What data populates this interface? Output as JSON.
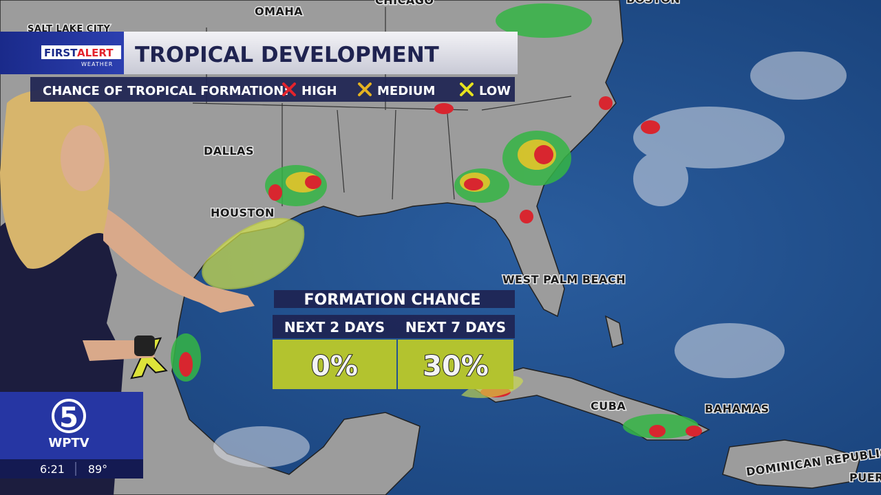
{
  "header": {
    "brand_first": "FIRST",
    "brand_alert": "ALERT",
    "brand_sub": "WEATHER",
    "title": "TROPICAL DEVELOPMENT"
  },
  "legend": {
    "label": "CHANCE OF TROPICAL FORMATION:",
    "items": [
      {
        "label": "HIGH",
        "color": "#e3232c"
      },
      {
        "label": "MEDIUM",
        "color": "#e5b321"
      },
      {
        "label": "LOW",
        "color": "#e6e21e"
      }
    ]
  },
  "map_labels": [
    "OMAHA",
    "CHICAGO",
    "BOSTON",
    "SALT LAKE CITY",
    "DALLAS",
    "HOUSTON",
    "WEST PALM BEACH",
    "CUBA",
    "BAHAMAS",
    "DOMINICAN REPUBLIC",
    "PUER"
  ],
  "formation": {
    "title": "FORMATION CHANCE",
    "columns": [
      {
        "period": "NEXT 2 DAYS",
        "chance": "0%"
      },
      {
        "period": "NEXT 7 DAYS",
        "chance": "30%"
      }
    ]
  },
  "station": {
    "channel": "5",
    "call_sign": "WPTV",
    "time": "6:21",
    "temperature": "89°"
  }
}
